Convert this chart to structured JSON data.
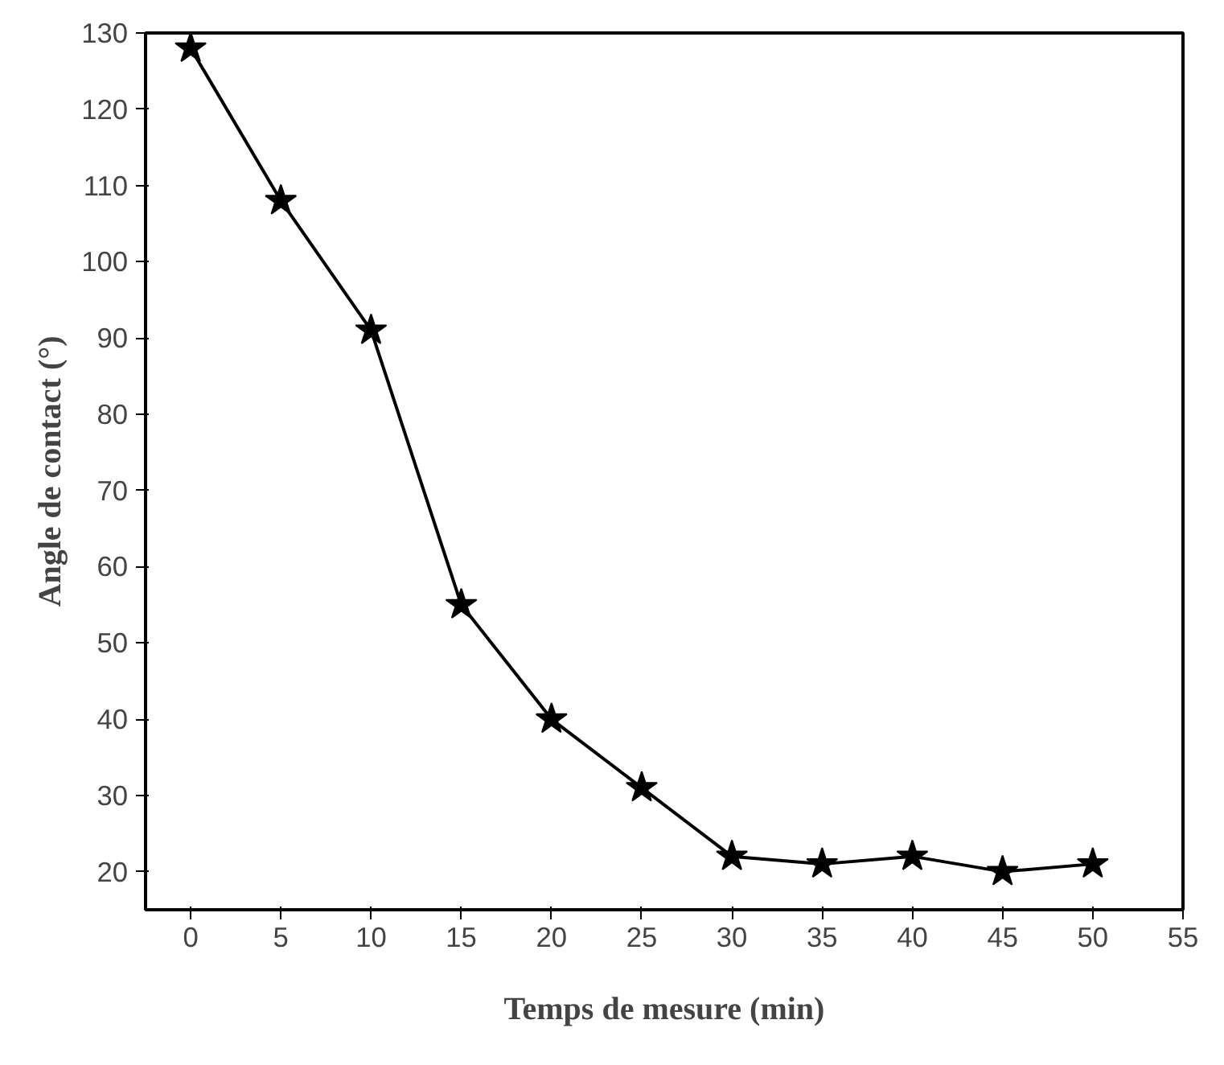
{
  "chart_data": {
    "type": "line",
    "xlabel": "Temps de mesure (min)",
    "ylabel": "Angle de contact (°)",
    "x": [
      0,
      5,
      10,
      15,
      20,
      25,
      30,
      35,
      40,
      45,
      50
    ],
    "series": [
      {
        "color": "#000000",
        "values": [
          128,
          108,
          91,
          55,
          40,
          31,
          22,
          21,
          22,
          20,
          21
        ]
      }
    ],
    "xlim": [
      -2.5,
      55
    ],
    "ylim": [
      15,
      130
    ],
    "xticks": [
      0,
      5,
      10,
      15,
      20,
      25,
      30,
      35,
      40,
      45,
      50,
      55
    ],
    "yticks": [
      20,
      30,
      40,
      50,
      60,
      70,
      80,
      90,
      100,
      110,
      120,
      130
    ],
    "marker": "star",
    "line_style": "solid",
    "grid": false
  }
}
